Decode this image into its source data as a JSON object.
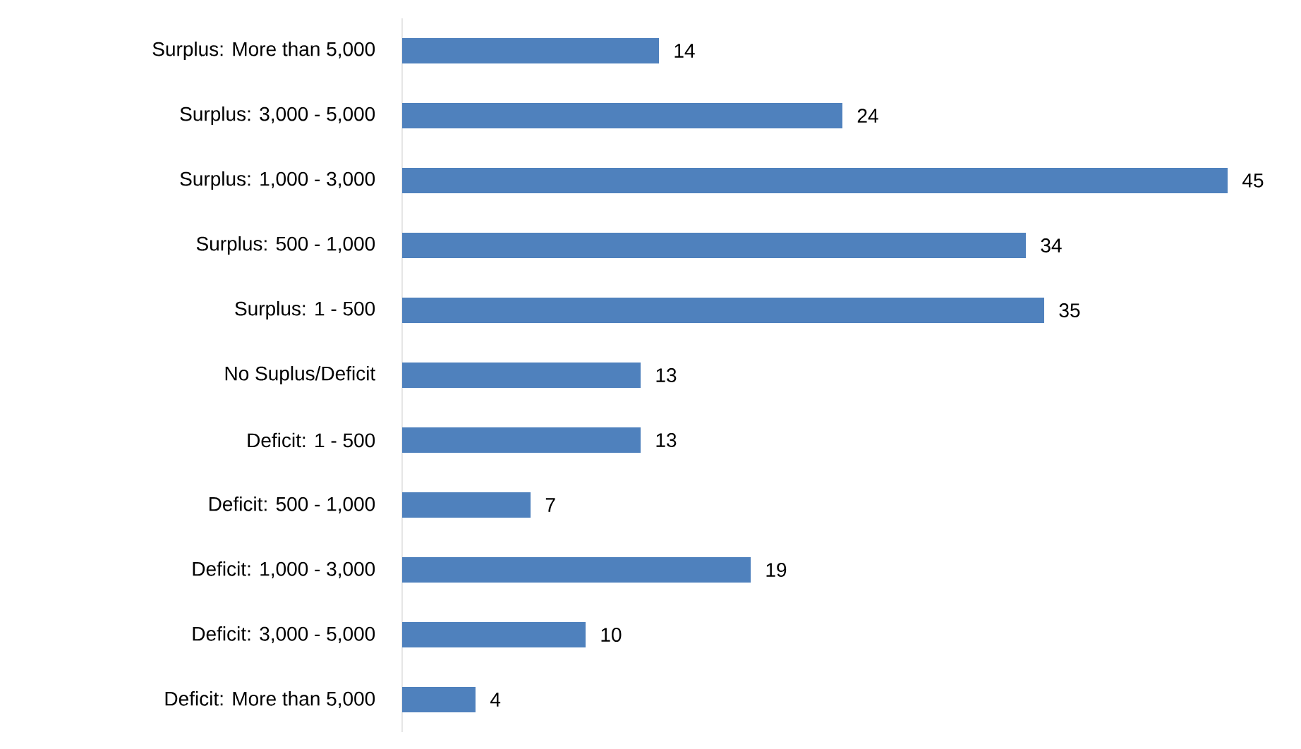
{
  "chart_data": {
    "type": "bar",
    "orientation": "horizontal",
    "categories": [
      "Surplus: More than 5,000",
      "Surplus: 3,000 - 5,000",
      "Surplus: 1,000 - 3,000",
      "Surplus: 500 - 1,000",
      "Surplus: 1 - 500",
      "No Suplus/Deficit",
      "Deficit: 1 - 500",
      "Deficit: 500 - 1,000",
      "Deficit: 1,000 - 3,000",
      "Deficit: 3,000 - 5,000",
      "Deficit: More than 5,000"
    ],
    "values": [
      14,
      24,
      45,
      34,
      35,
      13,
      13,
      7,
      19,
      10,
      4
    ],
    "color": "#4f81bd",
    "data_labels": true
  }
}
